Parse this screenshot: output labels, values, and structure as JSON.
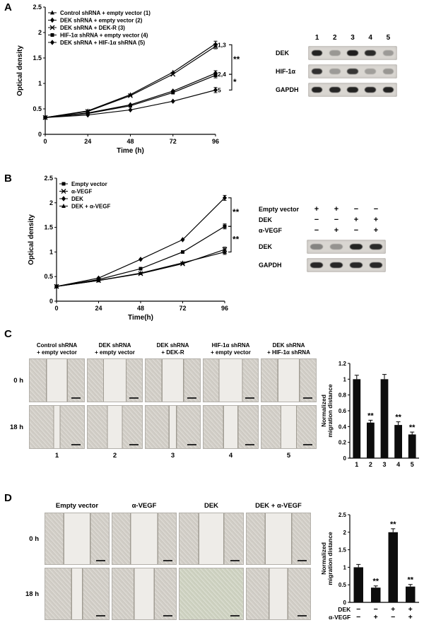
{
  "page": {
    "background": "#ffffff"
  },
  "colors": {
    "ink": "#000000",
    "band": "#141414",
    "blot_bg": "#d9d6d1",
    "micro_gap": "#eeece8",
    "micro_cells": "#cfccc5"
  },
  "panels": {
    "A": {
      "label": "A",
      "blot": {
        "lane_labels": [
          "1",
          "2",
          "3",
          "4",
          "5"
        ],
        "rows": [
          {
            "label": "DEK",
            "bands": [
              0.92,
              0.32,
              0.95,
              0.88,
              0.3
            ]
          },
          {
            "label": "HIF-1α",
            "bands": [
              0.85,
              0.3,
              0.82,
              0.28,
              0.32
            ]
          },
          {
            "label": "GAPDH",
            "bands": [
              0.92,
              0.9,
              0.92,
              0.9,
              0.92
            ]
          }
        ]
      }
    },
    "B": {
      "label": "B",
      "blot": {
        "condition_rows": [
          {
            "label": "Empty vector",
            "marks": [
              "+",
              "+",
              "−",
              "−"
            ]
          },
          {
            "label": "DEK",
            "marks": [
              "−",
              "−",
              "+",
              "+"
            ]
          },
          {
            "label": "α-VEGF",
            "marks": [
              "−",
              "+",
              "−",
              "+"
            ]
          }
        ],
        "rows": [
          {
            "label": "DEK",
            "bands": [
              0.42,
              0.34,
              0.92,
              0.88
            ]
          },
          {
            "label": "GAPDH",
            "bands": [
              0.9,
              0.9,
              0.9,
              0.9
            ]
          }
        ]
      }
    },
    "C": {
      "label": "C",
      "col_headers": [
        [
          "Control shRNA",
          "+ empty vector"
        ],
        [
          "DEK shRNA",
          "+ empty vector"
        ],
        [
          "DEK shRNA",
          "+ DEK-R"
        ],
        [
          "HIF-1α shRNA",
          "+ empty vector"
        ],
        [
          "DEK shRNA",
          "+ HIF-1α shRNA"
        ]
      ],
      "row_labels": [
        "0 h",
        "18 h"
      ],
      "lane_numbers": [
        "1",
        "2",
        "3",
        "4",
        "5"
      ],
      "gaps_0h": [
        37,
        40,
        38,
        41,
        38
      ],
      "gaps_18h": [
        10,
        26,
        12,
        25,
        27
      ]
    },
    "D": {
      "label": "D",
      "col_headers": [
        "Empty vector",
        "α-VEGF",
        "DEK",
        "DEK + α-VEGF"
      ],
      "row_labels": [
        "0 h",
        "18 h"
      ],
      "gaps_0h": [
        40,
        41,
        38,
        40
      ],
      "gaps_18h": [
        16,
        30,
        0,
        28
      ],
      "tints_18h": [
        "",
        "",
        "green",
        ""
      ]
    }
  },
  "chart_data": [
    {
      "id": "chartA",
      "type": "line",
      "title": "",
      "xlabel": "Time (h)",
      "ylabel": "Optical density",
      "x": [
        0,
        24,
        48,
        72,
        96
      ],
      "xlim": [
        0,
        96
      ],
      "ylim": [
        0,
        2.5
      ],
      "yticks": [
        0,
        0.5,
        1,
        1.5,
        2,
        2.5
      ],
      "legend_position": "top-left",
      "grid": false,
      "point_error": 0.05,
      "series": [
        {
          "name": "Control shRNA + empty vector (1)",
          "marker": "triangle",
          "values": [
            0.33,
            0.46,
            0.78,
            1.22,
            1.78
          ]
        },
        {
          "name": "DEK shRNA + empty vector (2)",
          "marker": "diamond",
          "values": [
            0.33,
            0.42,
            0.58,
            0.85,
            1.2
          ]
        },
        {
          "name": "DEK shRNA + DEK-R (3)",
          "marker": "x",
          "values": [
            0.33,
            0.45,
            0.76,
            1.18,
            1.73
          ]
        },
        {
          "name": "HIF-1α shRNA + empty vector (4)",
          "marker": "square",
          "values": [
            0.33,
            0.41,
            0.56,
            0.82,
            1.16
          ]
        },
        {
          "name": "DEK shRNA + HIF-1α shRNA (5)",
          "marker": "diamond",
          "values": [
            0.33,
            0.38,
            0.48,
            0.65,
            0.87
          ]
        }
      ],
      "right_labels": [
        {
          "text": "1,3",
          "value": 1.76
        },
        {
          "text": "2,4",
          "value": 1.18
        },
        {
          "text": "5",
          "value": 0.87
        }
      ],
      "brackets": [
        {
          "from": 1.76,
          "to": 1.18,
          "stars": "**"
        },
        {
          "from": 1.18,
          "to": 0.87,
          "stars": "*"
        }
      ]
    },
    {
      "id": "chartB",
      "type": "line",
      "title": "",
      "xlabel": "Time(h)",
      "ylabel": "Optical density",
      "x": [
        0,
        24,
        48,
        72,
        96
      ],
      "xlim": [
        0,
        96
      ],
      "ylim": [
        0,
        2.5
      ],
      "yticks": [
        0,
        0.5,
        1,
        1.5,
        2,
        2.5
      ],
      "legend_position": "top-left",
      "grid": false,
      "point_error": 0.05,
      "series": [
        {
          "name": "Empty vector",
          "marker": "square",
          "values": [
            0.3,
            0.44,
            0.66,
            1.0,
            1.52
          ]
        },
        {
          "name": "α-VEGF",
          "marker": "x",
          "values": [
            0.3,
            0.42,
            0.56,
            0.76,
            1.05
          ]
        },
        {
          "name": "DEK",
          "marker": "diamond",
          "values": [
            0.3,
            0.47,
            0.85,
            1.25,
            2.1
          ]
        },
        {
          "name": "DEK + α-VEGF",
          "marker": "triangle",
          "values": [
            0.3,
            0.42,
            0.57,
            0.78,
            1.0
          ]
        }
      ],
      "right_labels": [],
      "brackets": [
        {
          "from": 2.1,
          "to": 1.52,
          "stars": "**"
        },
        {
          "from": 1.52,
          "to": 1.0,
          "stars": "**"
        }
      ]
    },
    {
      "id": "chartC",
      "type": "bar",
      "categories": [
        "1",
        "2",
        "3",
        "4",
        "5"
      ],
      "values": [
        1.0,
        0.45,
        1.0,
        0.42,
        0.3
      ],
      "errors": [
        0.05,
        0.03,
        0.06,
        0.04,
        0.03
      ],
      "sig": [
        "",
        "**",
        "",
        "**",
        "**"
      ],
      "ylabel": [
        "Normalized",
        "migration distance"
      ],
      "ylim": [
        0,
        1.2
      ],
      "yticks": [
        0,
        0.2,
        0.4,
        0.6,
        0.8,
        1,
        1.2
      ],
      "grid": false
    },
    {
      "id": "chartD",
      "type": "bar",
      "categories": [
        "",
        "",
        "",
        ""
      ],
      "values": [
        1.0,
        0.42,
        2.0,
        0.45
      ],
      "errors": [
        0.08,
        0.05,
        0.1,
        0.06
      ],
      "sig": [
        "",
        "**",
        "**",
        "**"
      ],
      "ylabel": [
        "Normalized",
        "migration distance"
      ],
      "ylim": [
        0,
        2.5
      ],
      "yticks": [
        0,
        0.5,
        1,
        1.5,
        2,
        2.5
      ],
      "grid": false,
      "xrows": [
        {
          "label": "DEK",
          "marks": [
            "−",
            "−",
            "+",
            "+"
          ]
        },
        {
          "label": "α-VEGF",
          "marks": [
            "−",
            "+",
            "−",
            "+"
          ]
        }
      ]
    }
  ]
}
